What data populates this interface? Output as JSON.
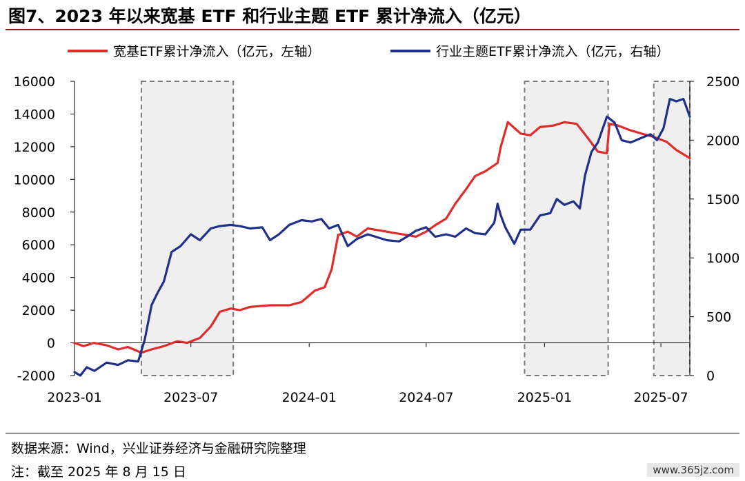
{
  "title": "图7、2023 年以来宽基 ETF 和行业主题 ETF 累计净流入（亿元）",
  "source": "数据来源：Wind，兴业证券经济与金融研究院整理",
  "note": "注：截至 2025 年 8 月 15 日",
  "watermark": "www.365jz.com",
  "chart_data": {
    "type": "line",
    "title": "",
    "x_ticks": [
      "2023-01",
      "2023-07",
      "2024-01",
      "2024-07",
      "2025-01",
      "2025-07"
    ],
    "x_range": [
      "2023-01-01",
      "2025-08-15"
    ],
    "y_left": {
      "ticks": [
        -2000,
        0,
        2000,
        4000,
        6000,
        8000,
        10000,
        12000,
        14000,
        16000
      ],
      "range": [
        -2000,
        16000
      ]
    },
    "y_right": {
      "ticks": [
        0,
        500,
        1000,
        1500,
        2000,
        2500
      ],
      "range": [
        0,
        2500
      ]
    },
    "legend_position": "top",
    "shaded_periods": [
      [
        "2023-04-15",
        "2023-09-05"
      ],
      [
        "2024-12-01",
        "2025-04-10"
      ],
      [
        "2025-06-20",
        "2025-08-15"
      ]
    ],
    "series": [
      {
        "name": "宽基ETF累计净流入（亿元，左轴）",
        "axis": "left",
        "color": "#e02b2b",
        "points": [
          [
            "2023-01-01",
            0
          ],
          [
            "2023-01-15",
            -200
          ],
          [
            "2023-01-31",
            0
          ],
          [
            "2023-02-20",
            -150
          ],
          [
            "2023-03-10",
            -400
          ],
          [
            "2023-03-25",
            -250
          ],
          [
            "2023-04-15",
            -600
          ],
          [
            "2023-05-01",
            -400
          ],
          [
            "2023-05-20",
            -200
          ],
          [
            "2023-06-10",
            100
          ],
          [
            "2023-06-25",
            0
          ],
          [
            "2023-07-15",
            300
          ],
          [
            "2023-08-01",
            1000
          ],
          [
            "2023-08-15",
            1900
          ],
          [
            "2023-09-01",
            2100
          ],
          [
            "2023-09-15",
            2000
          ],
          [
            "2023-10-01",
            2200
          ],
          [
            "2023-11-01",
            2300
          ],
          [
            "2023-12-01",
            2300
          ],
          [
            "2023-12-20",
            2500
          ],
          [
            "2024-01-10",
            3200
          ],
          [
            "2024-01-25",
            3400
          ],
          [
            "2024-02-05",
            4500
          ],
          [
            "2024-02-15",
            6600
          ],
          [
            "2024-03-01",
            6800
          ],
          [
            "2024-03-15",
            6500
          ],
          [
            "2024-04-01",
            7000
          ],
          [
            "2024-05-01",
            6800
          ],
          [
            "2024-05-15",
            6700
          ],
          [
            "2024-06-01",
            6600
          ],
          [
            "2024-06-15",
            6500
          ],
          [
            "2024-07-01",
            6800
          ],
          [
            "2024-07-15",
            7200
          ],
          [
            "2024-08-01",
            7600
          ],
          [
            "2024-08-15",
            8500
          ],
          [
            "2024-09-01",
            9400
          ],
          [
            "2024-09-15",
            10200
          ],
          [
            "2024-10-01",
            10500
          ],
          [
            "2024-10-20",
            11000
          ],
          [
            "2024-10-25",
            12000
          ],
          [
            "2024-11-05",
            13500
          ],
          [
            "2024-11-25",
            12800
          ],
          [
            "2024-12-10",
            12700
          ],
          [
            "2024-12-25",
            13200
          ],
          [
            "2025-01-15",
            13300
          ],
          [
            "2025-02-01",
            13500
          ],
          [
            "2025-02-20",
            13400
          ],
          [
            "2025-03-10",
            12500
          ],
          [
            "2025-03-25",
            11700
          ],
          [
            "2025-04-08",
            11600
          ],
          [
            "2025-04-12",
            13400
          ],
          [
            "2025-04-25",
            13300
          ],
          [
            "2025-05-15",
            13000
          ],
          [
            "2025-06-01",
            12800
          ],
          [
            "2025-06-20",
            12600
          ],
          [
            "2025-07-10",
            12300
          ],
          [
            "2025-07-25",
            11800
          ],
          [
            "2025-08-15",
            11300
          ]
        ]
      },
      {
        "name": "行业主题ETF累计净流入（亿元，右轴）",
        "axis": "right",
        "color": "#1f2f8a",
        "points": [
          [
            "2023-01-01",
            30
          ],
          [
            "2023-01-10",
            0
          ],
          [
            "2023-01-20",
            70
          ],
          [
            "2023-02-01",
            40
          ],
          [
            "2023-02-20",
            110
          ],
          [
            "2023-03-10",
            90
          ],
          [
            "2023-03-25",
            130
          ],
          [
            "2023-04-10",
            120
          ],
          [
            "2023-04-20",
            300
          ],
          [
            "2023-05-01",
            600
          ],
          [
            "2023-05-10",
            700
          ],
          [
            "2023-05-20",
            800
          ],
          [
            "2023-06-01",
            1050
          ],
          [
            "2023-06-15",
            1100
          ],
          [
            "2023-07-01",
            1200
          ],
          [
            "2023-07-15",
            1150
          ],
          [
            "2023-08-01",
            1250
          ],
          [
            "2023-08-15",
            1270
          ],
          [
            "2023-09-01",
            1280
          ],
          [
            "2023-09-15",
            1270
          ],
          [
            "2023-10-01",
            1250
          ],
          [
            "2023-10-20",
            1260
          ],
          [
            "2023-11-01",
            1150
          ],
          [
            "2023-11-15",
            1200
          ],
          [
            "2023-12-01",
            1280
          ],
          [
            "2023-12-20",
            1320
          ],
          [
            "2024-01-05",
            1310
          ],
          [
            "2024-01-20",
            1330
          ],
          [
            "2024-02-01",
            1250
          ],
          [
            "2024-02-15",
            1280
          ],
          [
            "2024-03-01",
            1100
          ],
          [
            "2024-03-15",
            1160
          ],
          [
            "2024-04-01",
            1200
          ],
          [
            "2024-05-01",
            1150
          ],
          [
            "2024-05-20",
            1140
          ],
          [
            "2024-06-01",
            1180
          ],
          [
            "2024-06-15",
            1230
          ],
          [
            "2024-07-01",
            1260
          ],
          [
            "2024-07-15",
            1180
          ],
          [
            "2024-08-01",
            1200
          ],
          [
            "2024-08-15",
            1180
          ],
          [
            "2024-09-01",
            1250
          ],
          [
            "2024-09-15",
            1210
          ],
          [
            "2024-10-01",
            1200
          ],
          [
            "2024-10-15",
            1300
          ],
          [
            "2024-10-20",
            1460
          ],
          [
            "2024-10-25",
            1360
          ],
          [
            "2024-11-01",
            1260
          ],
          [
            "2024-11-15",
            1120
          ],
          [
            "2024-11-25",
            1240
          ],
          [
            "2024-12-10",
            1240
          ],
          [
            "2024-12-25",
            1360
          ],
          [
            "2025-01-10",
            1380
          ],
          [
            "2025-01-20",
            1500
          ],
          [
            "2025-02-01",
            1450
          ],
          [
            "2025-02-15",
            1480
          ],
          [
            "2025-02-25",
            1420
          ],
          [
            "2025-03-05",
            1700
          ],
          [
            "2025-03-15",
            1900
          ],
          [
            "2025-03-25",
            1980
          ],
          [
            "2025-04-08",
            2200
          ],
          [
            "2025-04-20",
            2150
          ],
          [
            "2025-05-01",
            2000
          ],
          [
            "2025-05-15",
            1980
          ],
          [
            "2025-06-01",
            2020
          ],
          [
            "2025-06-15",
            2050
          ],
          [
            "2025-06-25",
            2000
          ],
          [
            "2025-07-05",
            2100
          ],
          [
            "2025-07-15",
            2350
          ],
          [
            "2025-07-25",
            2330
          ],
          [
            "2025-08-05",
            2350
          ],
          [
            "2025-08-15",
            2200
          ]
        ]
      }
    ]
  }
}
